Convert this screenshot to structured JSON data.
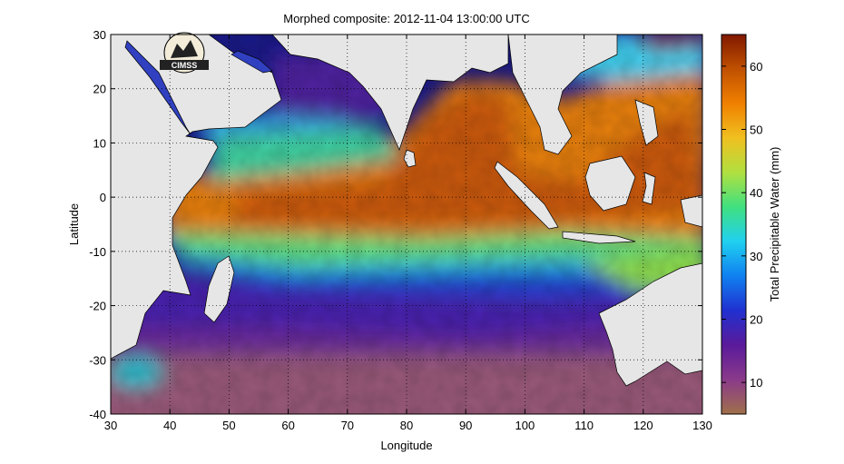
{
  "title": "Morphed composite: 2012-11-04 13:00:00 UTC",
  "map": {
    "xlabel": "Longitude",
    "ylabel": "Latitude",
    "xlim": [
      30,
      130
    ],
    "ylim": [
      -40,
      30
    ],
    "xticks": [
      30,
      40,
      50,
      60,
      70,
      80,
      90,
      100,
      110,
      120,
      130
    ],
    "yticks": [
      30,
      20,
      10,
      0,
      -10,
      -20,
      -30,
      -40
    ],
    "grid": "dotted",
    "land_color": "#e6e6e6",
    "logo_text": "CIMSS"
  },
  "colorbar": {
    "label": "Total Precipitable Water (mm)",
    "range": [
      5,
      65
    ],
    "ticks": [
      10,
      20,
      30,
      40,
      50,
      60
    ],
    "stops": [
      "#a0704a",
      "#8a3a8a",
      "#5a1a9a",
      "#2030d0",
      "#1080f0",
      "#20d0f0",
      "#40e080",
      "#b0e040",
      "#f0c020",
      "#f08000",
      "#c05000",
      "#801800"
    ]
  },
  "chart_data": {
    "type": "heatmap",
    "title": "Morphed composite: 2012-11-04 13:00:00 UTC",
    "xlabel": "Longitude",
    "ylabel": "Latitude",
    "xlim": [
      30,
      130
    ],
    "ylim": [
      -40,
      30
    ],
    "value_label": "Total Precipitable Water (mm)",
    "value_range": [
      5,
      65
    ]
  }
}
